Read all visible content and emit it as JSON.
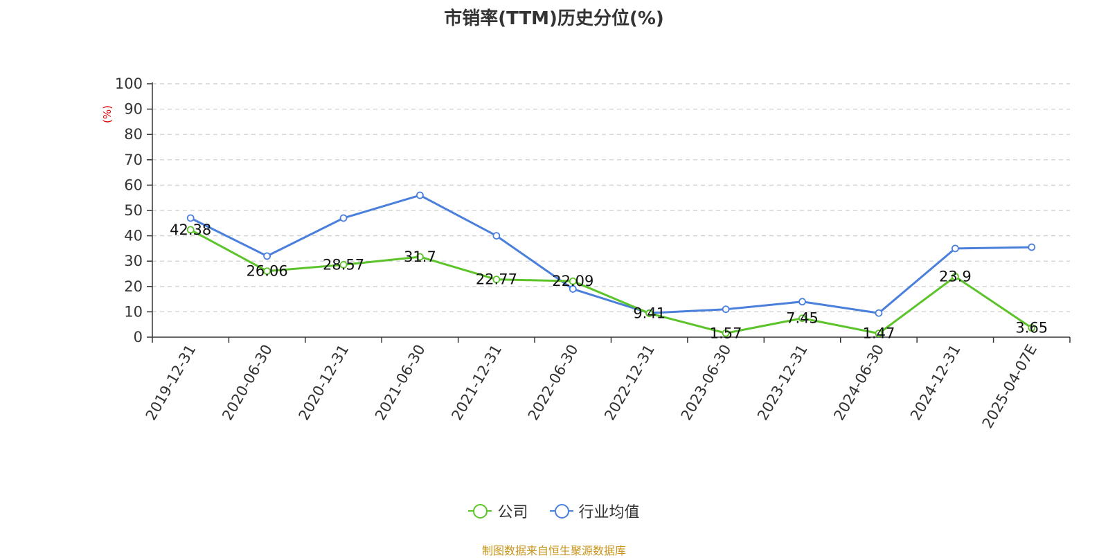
{
  "chart_data": {
    "type": "line",
    "title": "市销率(TTM)历史分位(%)",
    "ylabel": "(%)",
    "ylim": [
      0,
      100
    ],
    "yticks": [
      0,
      10,
      20,
      30,
      40,
      50,
      60,
      70,
      80,
      90,
      100
    ],
    "grid": true,
    "legend_position": "bottom",
    "categories": [
      "2019-12-31",
      "2020-06-30",
      "2020-12-31",
      "2021-06-30",
      "2021-12-31",
      "2022-06-30",
      "2022-12-31",
      "2023-06-30",
      "2023-12-31",
      "2024-06-30",
      "2024-12-31",
      "2025-04-07E"
    ],
    "series": [
      {
        "name": "公司",
        "color": "#5cc42a",
        "labeled": true,
        "values": [
          42.38,
          26.06,
          28.57,
          31.7,
          22.77,
          22.09,
          9.41,
          1.57,
          7.45,
          1.47,
          23.9,
          3.65
        ]
      },
      {
        "name": "行业均值",
        "color": "#4a7fdc",
        "labeled": false,
        "values": [
          47,
          32,
          47,
          56,
          40,
          19,
          9.5,
          11,
          14,
          9.5,
          35,
          35.5
        ]
      }
    ]
  },
  "source": "制图数据来自恒生聚源数据库"
}
